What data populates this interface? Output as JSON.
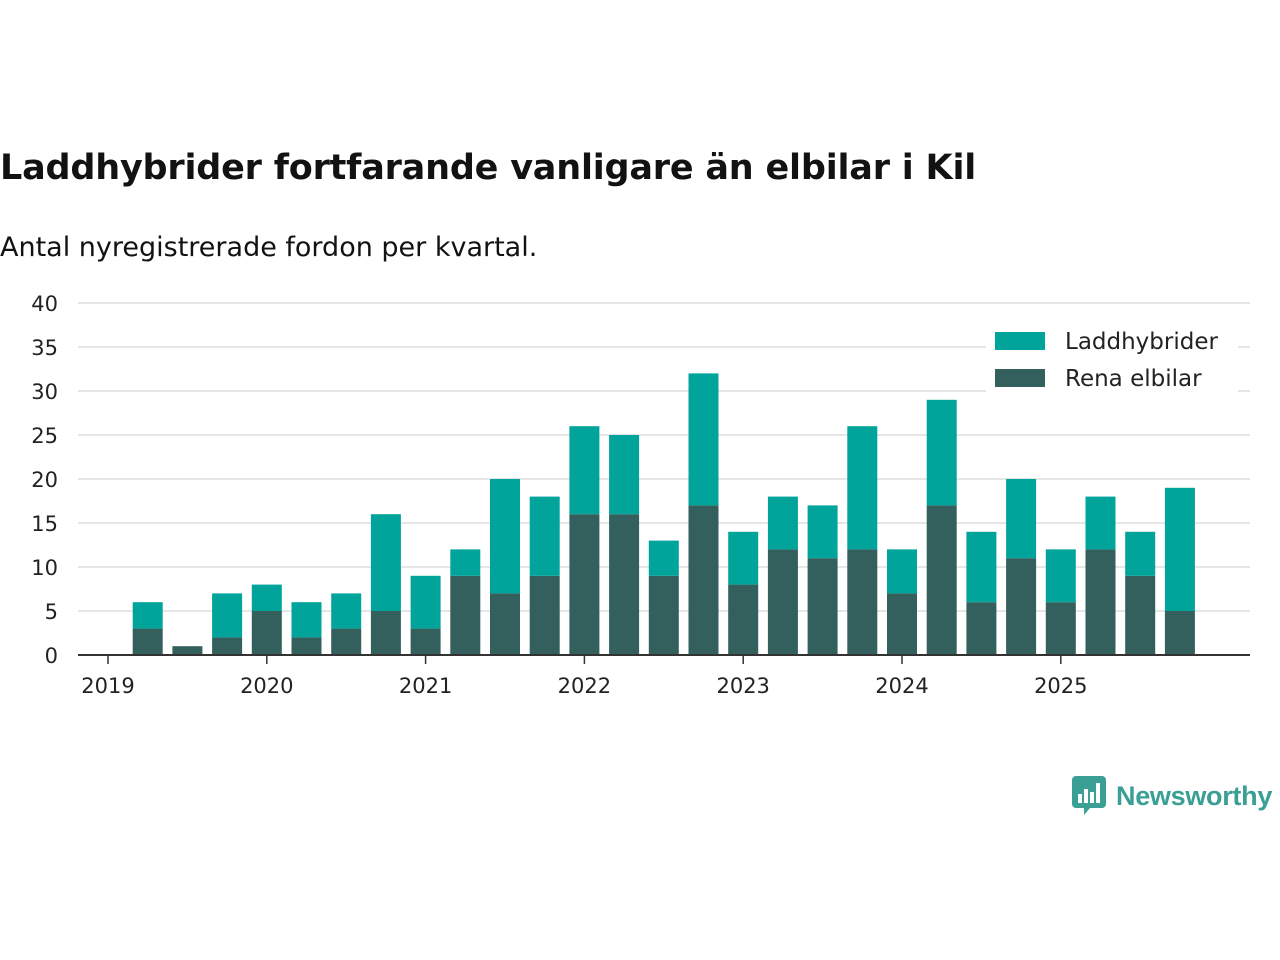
{
  "title": "Laddhybrider fortfarande vanligare än elbilar i Kil",
  "subtitle": "Antal nyregistrerade fordon per kvartal.",
  "brand": "Newsworthy",
  "colors": {
    "laddhybrider": "#00a49a",
    "rena_elbilar": "#335f5c",
    "grid": "#dddddd",
    "axis": "#333333",
    "brand": "#3a9f94"
  },
  "chart_data": {
    "type": "bar",
    "stacked": true,
    "title": "Laddhybrider fortfarande vanligare än elbilar i Kil",
    "subtitle": "Antal nyregistrerade fordon per kvartal.",
    "xlabel": "",
    "ylabel": "",
    "ylim": [
      0,
      40
    ],
    "yticks": [
      0,
      5,
      10,
      15,
      20,
      25,
      30,
      35,
      40
    ],
    "grid": true,
    "legend_position": "top-right",
    "x_tick_labels": [
      "2019",
      "2020",
      "2021",
      "2022",
      "2023",
      "2024",
      "2025"
    ],
    "categories": [
      "2019 Q1",
      "2019 Q2",
      "2019 Q3",
      "2019 Q4",
      "2020 Q1",
      "2020 Q2",
      "2020 Q3",
      "2020 Q4",
      "2021 Q1",
      "2021 Q2",
      "2021 Q3",
      "2021 Q4",
      "2022 Q1",
      "2022 Q2",
      "2022 Q3",
      "2022 Q4",
      "2023 Q1",
      "2023 Q2",
      "2023 Q3",
      "2023 Q4",
      "2024 Q1",
      "2024 Q2",
      "2024 Q3",
      "2024 Q4",
      "2025 Q1",
      "2025 Q2",
      "2025 Q3",
      "2025 Q4"
    ],
    "series": [
      {
        "name": "Rena elbilar",
        "key": "rena_elbilar",
        "values": [
          0,
          3,
          1,
          2,
          5,
          2,
          3,
          5,
          3,
          9,
          7,
          9,
          16,
          16,
          9,
          17,
          8,
          12,
          11,
          12,
          7,
          17,
          6,
          11,
          6,
          12,
          9,
          5
        ]
      },
      {
        "name": "Laddhybrider",
        "key": "laddhybrider",
        "values": [
          0,
          3,
          0,
          5,
          3,
          4,
          4,
          11,
          6,
          3,
          13,
          9,
          10,
          9,
          4,
          15,
          6,
          6,
          6,
          14,
          5,
          12,
          8,
          9,
          6,
          6,
          5,
          14
        ]
      }
    ]
  }
}
